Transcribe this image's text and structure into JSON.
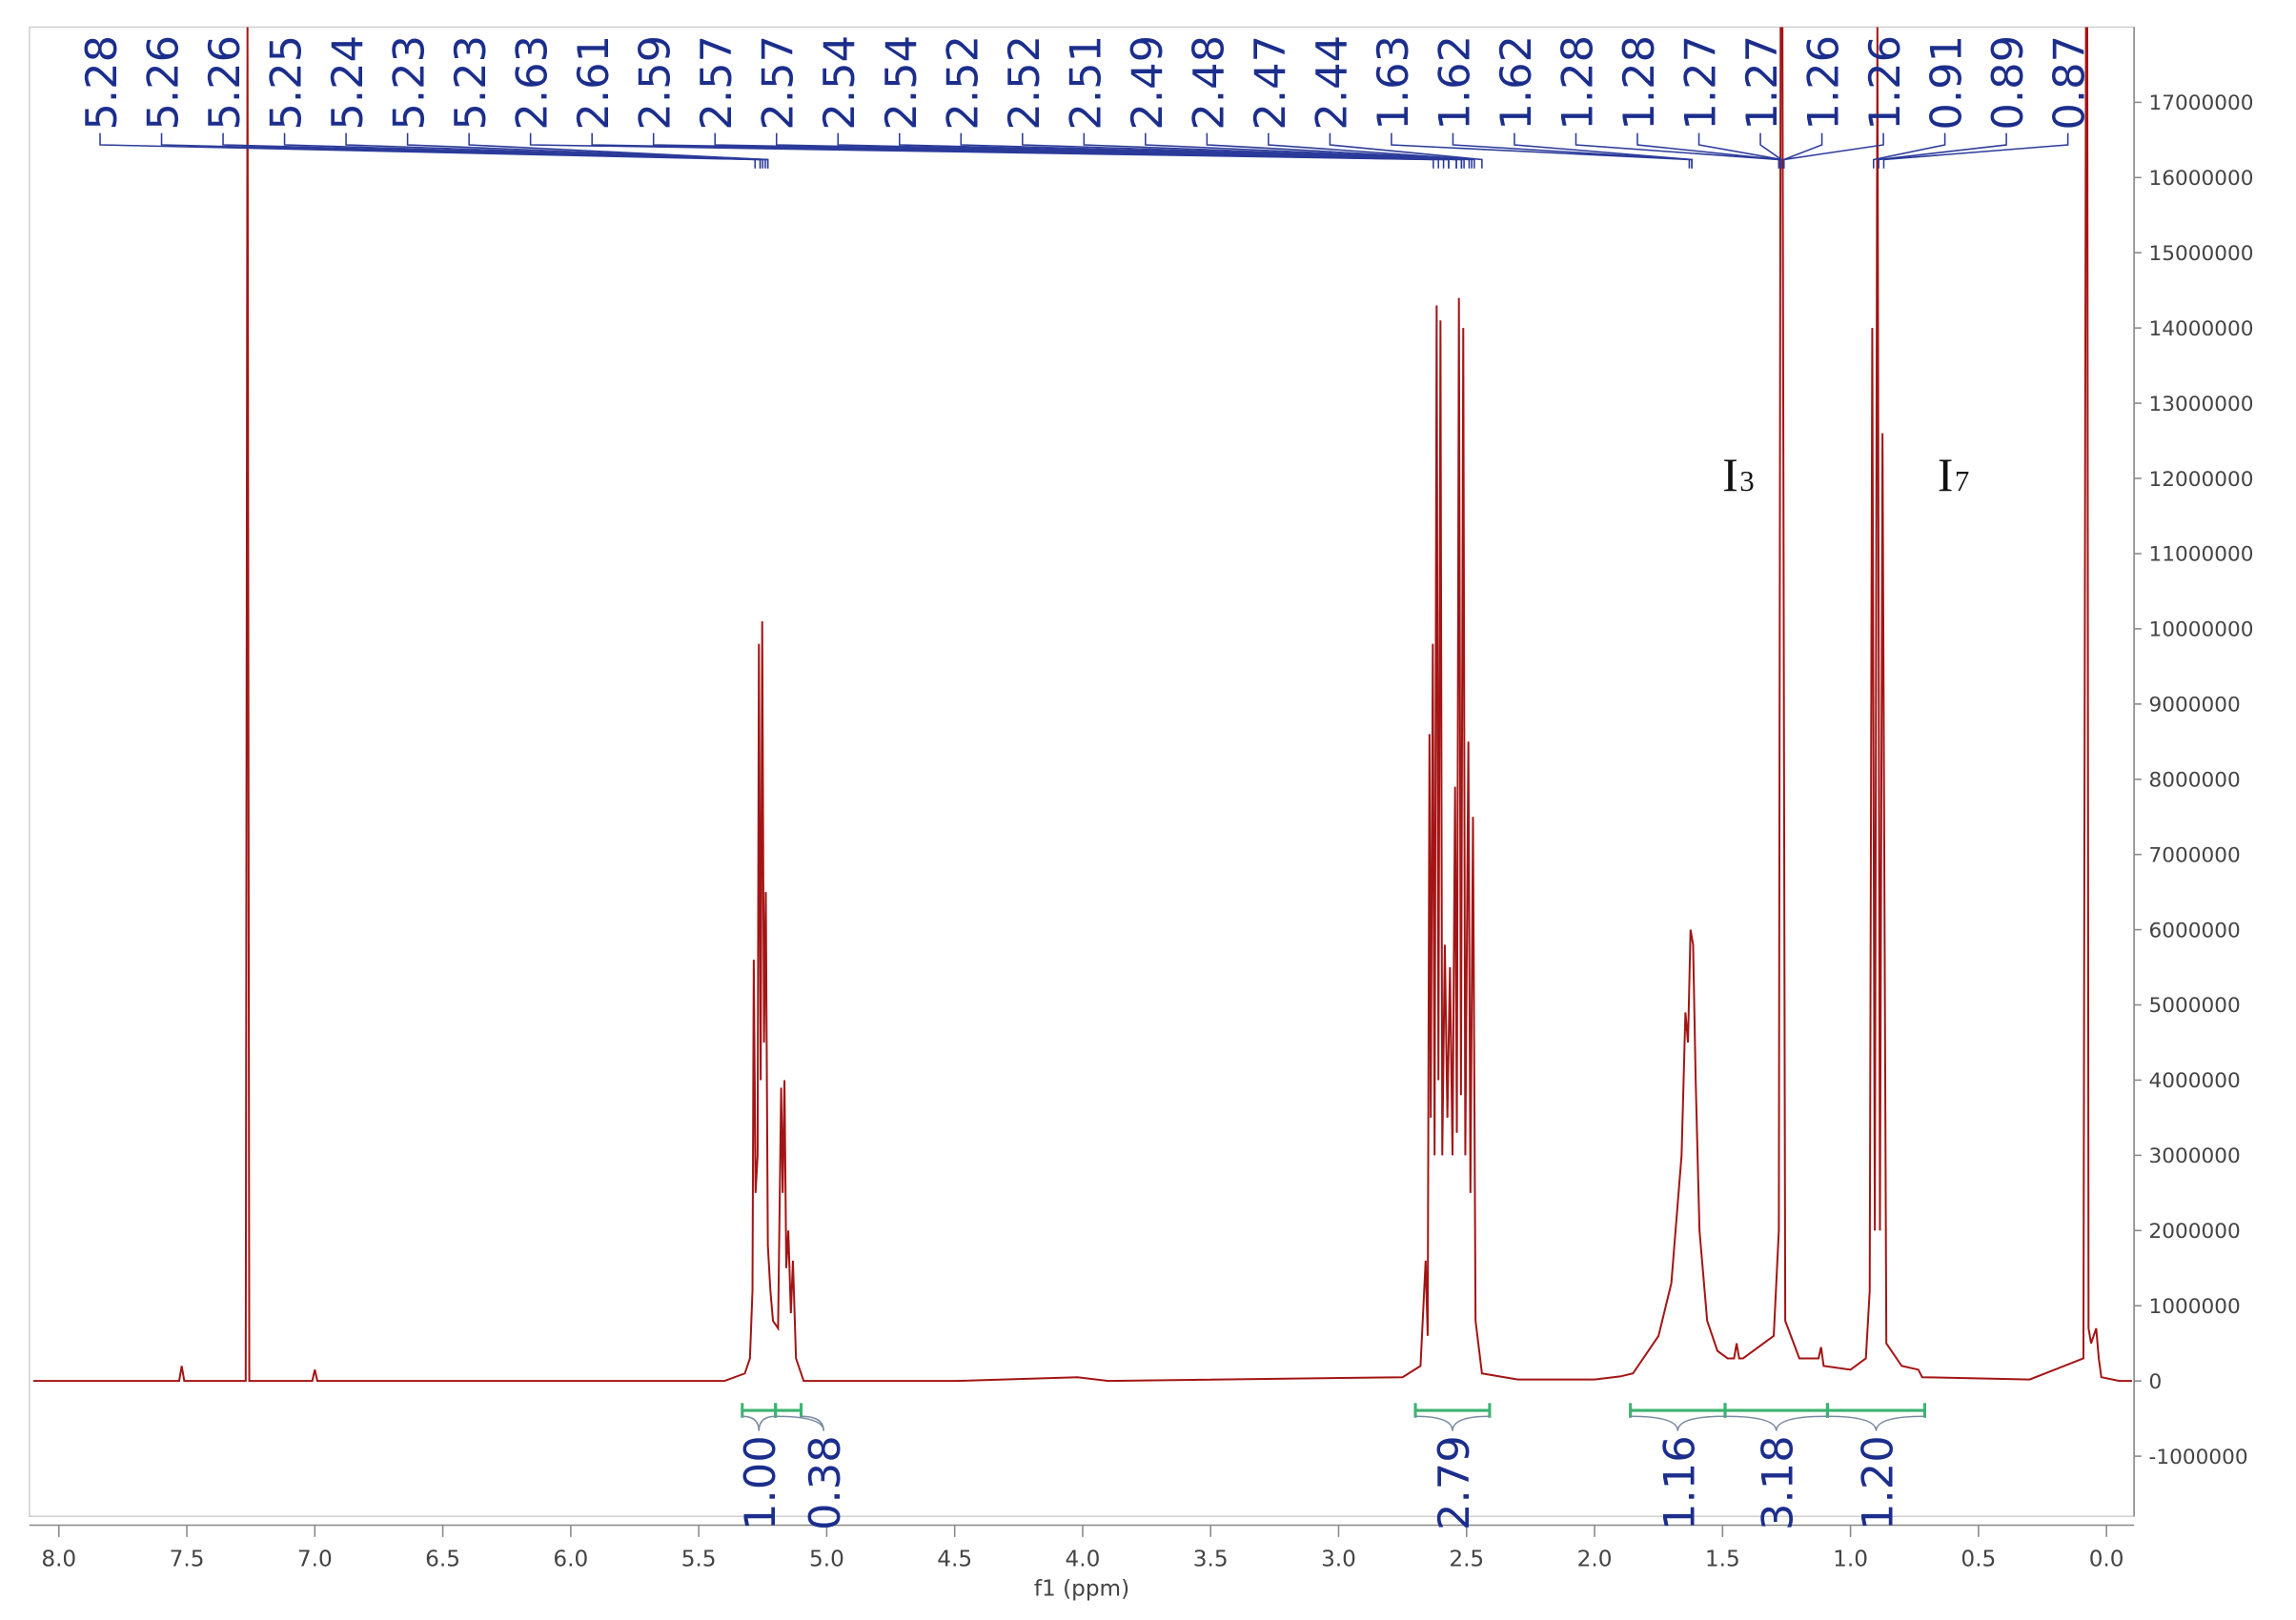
{
  "chart_data": {
    "type": "line",
    "x_label": "f1 (ppm)",
    "color": "#a31515",
    "xlim": [
      8.115,
      -0.108
    ],
    "ylim": [
      -1800000,
      18000000
    ],
    "xticks": [
      {
        "value": 8,
        "label": "8.0"
      },
      7.5,
      {
        "value": 7,
        "label": "7.0"
      },
      6.5,
      {
        "value": 6,
        "label": "6.0"
      },
      5.5,
      {
        "value": 5,
        "label": "5.0"
      },
      4.5,
      {
        "value": 4,
        "label": "4.0"
      },
      3.5,
      {
        "value": 3,
        "label": "3.0"
      },
      2.5,
      {
        "value": 2,
        "label": "2.0"
      },
      1.5,
      {
        "value": 1,
        "label": "1.0"
      },
      0.5,
      {
        "value": 0,
        "label": "0.0"
      }
    ],
    "yticks": [
      -1000000,
      0,
      1000000,
      2000000,
      3000000,
      4000000,
      5000000,
      6000000,
      7000000,
      8000000,
      9000000,
      10000000,
      11000000,
      12000000,
      13000000,
      14000000,
      15000000,
      16000000,
      17000000
    ],
    "x": [
      8.1,
      7.53,
      7.52,
      7.51,
      7.27,
      7.263,
      7.256,
      7.01,
      7.0,
      6.99,
      5.4,
      5.32,
      5.3,
      5.29,
      5.285,
      5.278,
      5.27,
      5.265,
      5.258,
      5.252,
      5.245,
      5.238,
      5.23,
      5.22,
      5.21,
      5.19,
      5.178,
      5.172,
      5.165,
      5.158,
      5.15,
      5.14,
      5.132,
      5.12,
      5.09,
      4.5,
      4.02,
      3.9,
      2.75,
      2.68,
      2.66,
      2.652,
      2.645,
      2.64,
      2.632,
      2.625,
      2.617,
      2.61,
      2.602,
      2.595,
      2.585,
      2.575,
      2.565,
      2.555,
      2.545,
      2.538,
      2.53,
      2.522,
      2.513,
      2.505,
      2.493,
      2.485,
      2.475,
      2.465,
      2.44,
      2.3,
      2.0,
      1.9,
      1.85,
      1.75,
      1.7,
      1.66,
      1.645,
      1.635,
      1.625,
      1.615,
      1.605,
      1.59,
      1.56,
      1.52,
      1.48,
      1.455,
      1.445,
      1.435,
      1.42,
      1.3,
      1.28,
      1.273,
      1.266,
      1.255,
      1.2,
      1.125,
      1.115,
      1.105,
      1.0,
      0.94,
      0.925,
      0.915,
      0.905,
      0.895,
      0.885,
      0.875,
      0.86,
      0.8,
      0.735,
      0.72,
      0.3,
      0.09,
      0.08,
      0.075,
      0.07,
      0.06,
      0.04,
      0.03,
      0.02,
      -0.05,
      -0.1
    ],
    "values": [
      0,
      0,
      200000,
      0,
      0,
      18000000,
      0,
      0,
      150000,
      0,
      0,
      100000,
      300000,
      1200000,
      5600000,
      2500000,
      3000000,
      9800000,
      4000000,
      10100000,
      4500000,
      6500000,
      1800000,
      1200000,
      800000,
      700000,
      3900000,
      2500000,
      4000000,
      1500000,
      2000000,
      900000,
      1600000,
      300000,
      0,
      0,
      50000,
      0,
      50000,
      200000,
      1600000,
      600000,
      8600000,
      3500000,
      9800000,
      3000000,
      14300000,
      4000000,
      14100000,
      3000000,
      5800000,
      3500000,
      5500000,
      3000000,
      7900000,
      3300000,
      14400000,
      3800000,
      14000000,
      3000000,
      8500000,
      2500000,
      7500000,
      800000,
      100000,
      20000,
      20000,
      60000,
      100000,
      600000,
      1300000,
      3000000,
      4900000,
      4500000,
      6000000,
      5800000,
      4000000,
      2000000,
      800000,
      400000,
      300000,
      300000,
      500000,
      300000,
      300000,
      600000,
      2000000,
      18000000,
      18000000,
      800000,
      300000,
      300000,
      450000,
      200000,
      150000,
      300000,
      1200000,
      14000000,
      2000000,
      18000000,
      2000000,
      12600000,
      500000,
      200000,
      150000,
      50000,
      20000,
      300000,
      18000000,
      18000000,
      700000,
      500000,
      700000,
      300000,
      50000,
      0,
      0
    ],
    "peaks": [
      5.28,
      5.26,
      5.26,
      5.25,
      5.24,
      5.23,
      5.23,
      2.63,
      2.61,
      2.59,
      2.57,
      2.57,
      2.54,
      2.54,
      2.52,
      2.52,
      2.51,
      2.49,
      2.48,
      2.47,
      2.44,
      1.63,
      1.62,
      1.62,
      1.28,
      1.28,
      1.27,
      1.27,
      1.26,
      1.26,
      0.91,
      0.89,
      0.87
    ],
    "integrals": [
      {
        "from": 5.33,
        "to": 5.2,
        "value": {
          "value": 1,
          "label": "1.00"
        }
      },
      {
        "from": 5.2,
        "to": 5.1,
        "value": 0.38
      },
      {
        "from": 2.7,
        "to": 2.41,
        "value": 2.79
      },
      {
        "from": 1.86,
        "to": 1.49,
        "value": 1.16
      },
      {
        "from": 1.49,
        "to": 1.09,
        "value": 3.18
      },
      {
        "from": 1.09,
        "to": 0.71,
        "value": {
          "value": 1.2,
          "label": "1.20"
        }
      }
    ],
    "annotations": [
      {
        "base": "I",
        "index": "3",
        "x": 1.5
      },
      {
        "base": "I",
        "index": "7",
        "x": 0.66
      }
    ]
  }
}
